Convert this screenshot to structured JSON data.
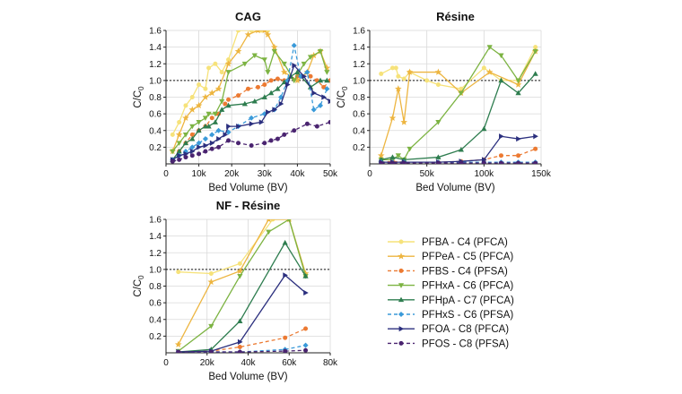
{
  "chart_data": [
    {
      "type": "line",
      "title": "CAG",
      "xlabel": "Bed Volume (BV)",
      "ylabel": "C/C",
      "ylabel_sub": "0",
      "xlim": [
        0,
        50000
      ],
      "ylim": [
        0,
        1.6
      ],
      "xticks": [
        0,
        10000,
        20000,
        30000,
        40000,
        50000
      ],
      "xtick_labels": [
        "0",
        "10k",
        "20k",
        "30k",
        "40k",
        "50k"
      ],
      "yticks": [
        0.2,
        0.4,
        0.6,
        0.8,
        1.0,
        1.2,
        1.4,
        1.6
      ],
      "ytick_labels": [
        "0.2",
        "0.4",
        "0.6",
        "0.8",
        "1.0",
        "1.2",
        "1.4",
        "1.6"
      ],
      "reference_line": 1.0,
      "series": [
        {
          "name": "PFBA - C4 (PFCA)",
          "x": [
            2000,
            4000,
            6000,
            8000,
            10000,
            12000,
            13000,
            15000,
            17000,
            19000,
            22000,
            26000,
            29000,
            31000
          ],
          "y": [
            0.35,
            0.5,
            0.7,
            0.8,
            0.95,
            0.9,
            1.15,
            1.2,
            1.1,
            1.25,
            1.6,
            1.6,
            1.6,
            1.6
          ]
        },
        {
          "name": "PFPeA - C5 (PFCA)",
          "x": [
            2000,
            4000,
            6000,
            8000,
            10000,
            12000,
            14000,
            16000,
            19000,
            22000,
            25000,
            28000,
            30000,
            31000,
            33000,
            36000,
            40000,
            43000,
            45000,
            47000,
            49000
          ],
          "y": [
            0.15,
            0.35,
            0.55,
            0.65,
            0.7,
            0.8,
            0.85,
            0.9,
            1.2,
            1.35,
            1.55,
            1.6,
            1.6,
            1.55,
            1.4,
            1.1,
            1.0,
            1.1,
            1.3,
            1.35,
            1.15
          ]
        },
        {
          "name": "PFBS - C4 (PFSA)",
          "x": [
            2000,
            4000,
            6000,
            8000,
            10000,
            12000,
            14000,
            16000,
            18000,
            19000,
            22000,
            25000,
            28000,
            30000,
            32000,
            34000,
            36000,
            40000,
            44000,
            46000,
            48000,
            50000
          ],
          "y": [
            0.05,
            0.15,
            0.25,
            0.35,
            0.4,
            0.45,
            0.55,
            0.6,
            0.72,
            0.77,
            0.82,
            0.9,
            0.92,
            0.95,
            1.0,
            1.02,
            1.0,
            1.05,
            1.05,
            1.0,
            0.92,
            1.0
          ]
        },
        {
          "name": "PFHxA - C6 (PFCA)",
          "x": [
            2000,
            4000,
            6000,
            8000,
            10000,
            12000,
            13000,
            15000,
            17000,
            19000,
            24000,
            27000,
            30000,
            31000,
            33000,
            36000,
            39000,
            42000,
            44000,
            47000,
            49000
          ],
          "y": [
            0.15,
            0.25,
            0.35,
            0.45,
            0.5,
            0.55,
            0.6,
            0.6,
            0.75,
            1.1,
            1.2,
            1.3,
            1.25,
            1.1,
            1.35,
            1.2,
            1.0,
            1.2,
            1.28,
            1.35,
            1.1
          ]
        },
        {
          "name": "PFHpA - C7 (PFCA)",
          "x": [
            2000,
            4000,
            6000,
            8000,
            10000,
            12000,
            13000,
            15000,
            17000,
            19000,
            24000,
            27000,
            30000,
            32000,
            34000,
            36000,
            38000,
            40000,
            44000,
            47000,
            49000
          ],
          "y": [
            0.05,
            0.15,
            0.25,
            0.3,
            0.4,
            0.45,
            0.45,
            0.5,
            0.65,
            0.7,
            0.72,
            0.75,
            0.8,
            0.85,
            0.9,
            0.98,
            1.05,
            1.1,
            0.92,
            1.0,
            1.0
          ]
        },
        {
          "name": "PFHxS - C6 (PFSA)",
          "x": [
            2000,
            4000,
            6000,
            8000,
            10000,
            12000,
            14000,
            16000,
            19000,
            22000,
            26000,
            30000,
            33000,
            35000,
            37000,
            39000,
            41000,
            43000,
            45000,
            47000,
            49000
          ],
          "y": [
            0.05,
            0.1,
            0.15,
            0.2,
            0.25,
            0.3,
            0.35,
            0.4,
            0.38,
            0.45,
            0.55,
            0.6,
            0.65,
            0.8,
            1.0,
            1.42,
            1.05,
            1.1,
            0.65,
            0.7,
            0.9
          ]
        },
        {
          "name": "PFOA - C8 (PFCA)",
          "x": [
            2000,
            4000,
            6000,
            8000,
            10000,
            12000,
            14000,
            16000,
            18000,
            19000,
            22000,
            26000,
            29000,
            31000,
            33000,
            35000,
            37000,
            39000,
            42000,
            45000,
            48000,
            50000
          ],
          "y": [
            0.05,
            0.1,
            0.12,
            0.15,
            0.2,
            0.22,
            0.25,
            0.3,
            0.35,
            0.45,
            0.45,
            0.48,
            0.5,
            0.62,
            0.65,
            0.72,
            0.95,
            1.18,
            1.05,
            0.85,
            0.8,
            0.75
          ]
        },
        {
          "name": "PFOS - C8 (PFSA)",
          "x": [
            2000,
            4000,
            6000,
            8000,
            10000,
            12000,
            14000,
            16000,
            19000,
            22000,
            26000,
            30000,
            32000,
            34000,
            36000,
            39000,
            43000,
            46000,
            50000
          ],
          "y": [
            0.03,
            0.05,
            0.08,
            0.1,
            0.12,
            0.15,
            0.18,
            0.2,
            0.28,
            0.25,
            0.22,
            0.25,
            0.28,
            0.3,
            0.35,
            0.4,
            0.48,
            0.45,
            0.5
          ]
        }
      ]
    },
    {
      "type": "line",
      "title": "Résine",
      "xlabel": "Bed Volume (BV)",
      "ylabel": "C/C",
      "ylabel_sub": "0",
      "xlim": [
        0,
        150000
      ],
      "ylim": [
        0,
        1.6
      ],
      "xticks": [
        0,
        50000,
        100000,
        150000
      ],
      "xtick_labels": [
        "0",
        "50k",
        "100k",
        "150k"
      ],
      "yticks": [
        0.2,
        0.4,
        0.6,
        0.8,
        1.0,
        1.2,
        1.4,
        1.6
      ],
      "ytick_labels": [
        "0.2",
        "0.4",
        "0.6",
        "0.8",
        "1.0",
        "1.2",
        "1.4",
        "1.6"
      ],
      "reference_line": 1.0,
      "series": [
        {
          "name": "PFBA - C4 (PFCA)",
          "x": [
            10000,
            20000,
            23000,
            25000,
            30000,
            35000,
            50000,
            60000,
            80000,
            100000,
            115000,
            130000,
            145000
          ],
          "y": [
            1.08,
            1.15,
            1.15,
            1.05,
            1.02,
            1.1,
            1.0,
            0.95,
            0.9,
            1.15,
            1.0,
            1.0,
            1.4
          ]
        },
        {
          "name": "PFPeA - C5 (PFCA)",
          "x": [
            10000,
            20000,
            25000,
            30000,
            35000,
            60000,
            80000,
            105000,
            130000,
            145000
          ],
          "y": [
            0.1,
            0.55,
            0.9,
            0.5,
            1.1,
            1.1,
            0.85,
            1.1,
            0.95,
            1.35
          ]
        },
        {
          "name": "PFBS - C4 (PFSA)",
          "x": [
            10000,
            20000,
            30000,
            60000,
            80000,
            100000,
            115000,
            130000,
            145000
          ],
          "y": [
            0.02,
            0.03,
            0.02,
            0.02,
            0.03,
            0.05,
            0.1,
            0.1,
            0.18
          ]
        },
        {
          "name": "PFHxA - C6 (PFCA)",
          "x": [
            10000,
            20000,
            25000,
            30000,
            35000,
            60000,
            80000,
            105000,
            115000,
            130000,
            145000
          ],
          "y": [
            0.05,
            0.05,
            0.1,
            0.05,
            0.18,
            0.5,
            0.85,
            1.4,
            1.3,
            1.0,
            1.35
          ]
        },
        {
          "name": "PFHpA - C7 (PFCA)",
          "x": [
            10000,
            20000,
            30000,
            60000,
            80000,
            100000,
            115000,
            130000,
            145000
          ],
          "y": [
            0.05,
            0.08,
            0.05,
            0.08,
            0.17,
            0.42,
            1.0,
            0.85,
            1.08
          ]
        },
        {
          "name": "PFHxS - C6 (PFSA)",
          "x": [
            10000,
            20000,
            30000,
            60000,
            80000,
            100000,
            115000,
            130000,
            145000
          ],
          "y": [
            0.02,
            0.02,
            0.02,
            0.02,
            0.02,
            0.02,
            0.02,
            0.02,
            0.02
          ]
        },
        {
          "name": "PFOA - C8 (PFCA)",
          "x": [
            10000,
            20000,
            30000,
            60000,
            80000,
            100000,
            115000,
            130000,
            145000
          ],
          "y": [
            0.02,
            0.02,
            0.02,
            0.02,
            0.03,
            0.05,
            0.33,
            0.3,
            0.33
          ]
        },
        {
          "name": "PFOS - C8 (PFSA)",
          "x": [
            10000,
            20000,
            30000,
            60000,
            80000,
            100000,
            115000,
            130000,
            145000
          ],
          "y": [
            0.01,
            0.01,
            0.01,
            0.01,
            0.01,
            0.01,
            0.01,
            0.01,
            0.01
          ]
        }
      ]
    },
    {
      "type": "line",
      "title": "NF - Résine",
      "xlabel": "Bed Volume (BV)",
      "ylabel": "C/C",
      "ylabel_sub": "0",
      "xlim": [
        0,
        80000
      ],
      "ylim": [
        0,
        1.6
      ],
      "xticks": [
        0,
        20000,
        40000,
        60000,
        80000
      ],
      "xtick_labels": [
        "0",
        "20k",
        "40k",
        "60k",
        "80k"
      ],
      "yticks": [
        0.2,
        0.4,
        0.6,
        0.8,
        1.0,
        1.2,
        1.4,
        1.6
      ],
      "ytick_labels": [
        "0.2",
        "0.4",
        "0.6",
        "0.8",
        "1.0",
        "1.2",
        "1.4",
        "1.6"
      ],
      "reference_line": 1.0,
      "series": [
        {
          "name": "PFBA - C4 (PFCA)",
          "x": [
            6000,
            22000,
            36000,
            52000,
            60000,
            68000
          ],
          "y": [
            0.97,
            0.95,
            1.07,
            1.6,
            1.6,
            0.92
          ]
        },
        {
          "name": "PFPeA - C5 (PFCA)",
          "x": [
            6000,
            22000,
            36000,
            50000,
            60000,
            68000
          ],
          "y": [
            0.1,
            0.85,
            0.98,
            1.6,
            1.6,
            0.95
          ]
        },
        {
          "name": "PFBS - C4 (PFSA)",
          "x": [
            6000,
            22000,
            36000,
            58000,
            68000
          ],
          "y": [
            0.01,
            0.02,
            0.07,
            0.18,
            0.29
          ]
        },
        {
          "name": "PFHxA - C6 (PFCA)",
          "x": [
            6000,
            22000,
            36000,
            50000,
            60000,
            68000
          ],
          "y": [
            0.02,
            0.32,
            0.92,
            1.45,
            1.6,
            0.92
          ]
        },
        {
          "name": "PFHpA - C7 (PFCA)",
          "x": [
            6000,
            22000,
            36000,
            58000,
            68000
          ],
          "y": [
            0.01,
            0.04,
            0.38,
            1.32,
            0.92
          ]
        },
        {
          "name": "PFHxS - C6 (PFSA)",
          "x": [
            6000,
            22000,
            36000,
            58000,
            68000
          ],
          "y": [
            0.01,
            0.01,
            0.01,
            0.04,
            0.09
          ]
        },
        {
          "name": "PFOA - C8 (PFCA)",
          "x": [
            6000,
            22000,
            36000,
            58000,
            68000
          ],
          "y": [
            0.01,
            0.02,
            0.13,
            0.93,
            0.72
          ]
        },
        {
          "name": "PFOS - C8 (PFSA)",
          "x": [
            6000,
            22000,
            36000,
            58000,
            68000
          ],
          "y": [
            0.01,
            0.01,
            0.01,
            0.02,
            0.03
          ]
        }
      ]
    }
  ],
  "legend": [
    {
      "name": "PFBA - C4 (PFCA)",
      "color": "#F6E27A",
      "dash": "solid",
      "marker": "circle"
    },
    {
      "name": "PFPeA - C5 (PFCA)",
      "color": "#EDB540",
      "dash": "solid",
      "marker": "star"
    },
    {
      "name": "PFBS - C4 (PFSA)",
      "color": "#EC7A32",
      "dash": "dashed",
      "marker": "circle"
    },
    {
      "name": "PFHxA - C6 (PFCA)",
      "color": "#7CB342",
      "dash": "solid",
      "marker": "triangle-down"
    },
    {
      "name": "PFHpA - C7 (PFCA)",
      "color": "#2E7D4F",
      "dash": "solid",
      "marker": "triangle-up"
    },
    {
      "name": "PFHxS - C6 (PFSA)",
      "color": "#3A9AD9",
      "dash": "dashed",
      "marker": "diamond"
    },
    {
      "name": "PFOA - C8 (PFCA)",
      "color": "#2B2F7E",
      "dash": "solid",
      "marker": "triangle-right"
    },
    {
      "name": "PFOS - C8 (PFSA)",
      "color": "#4A2470",
      "dash": "dashed",
      "marker": "circle"
    }
  ]
}
